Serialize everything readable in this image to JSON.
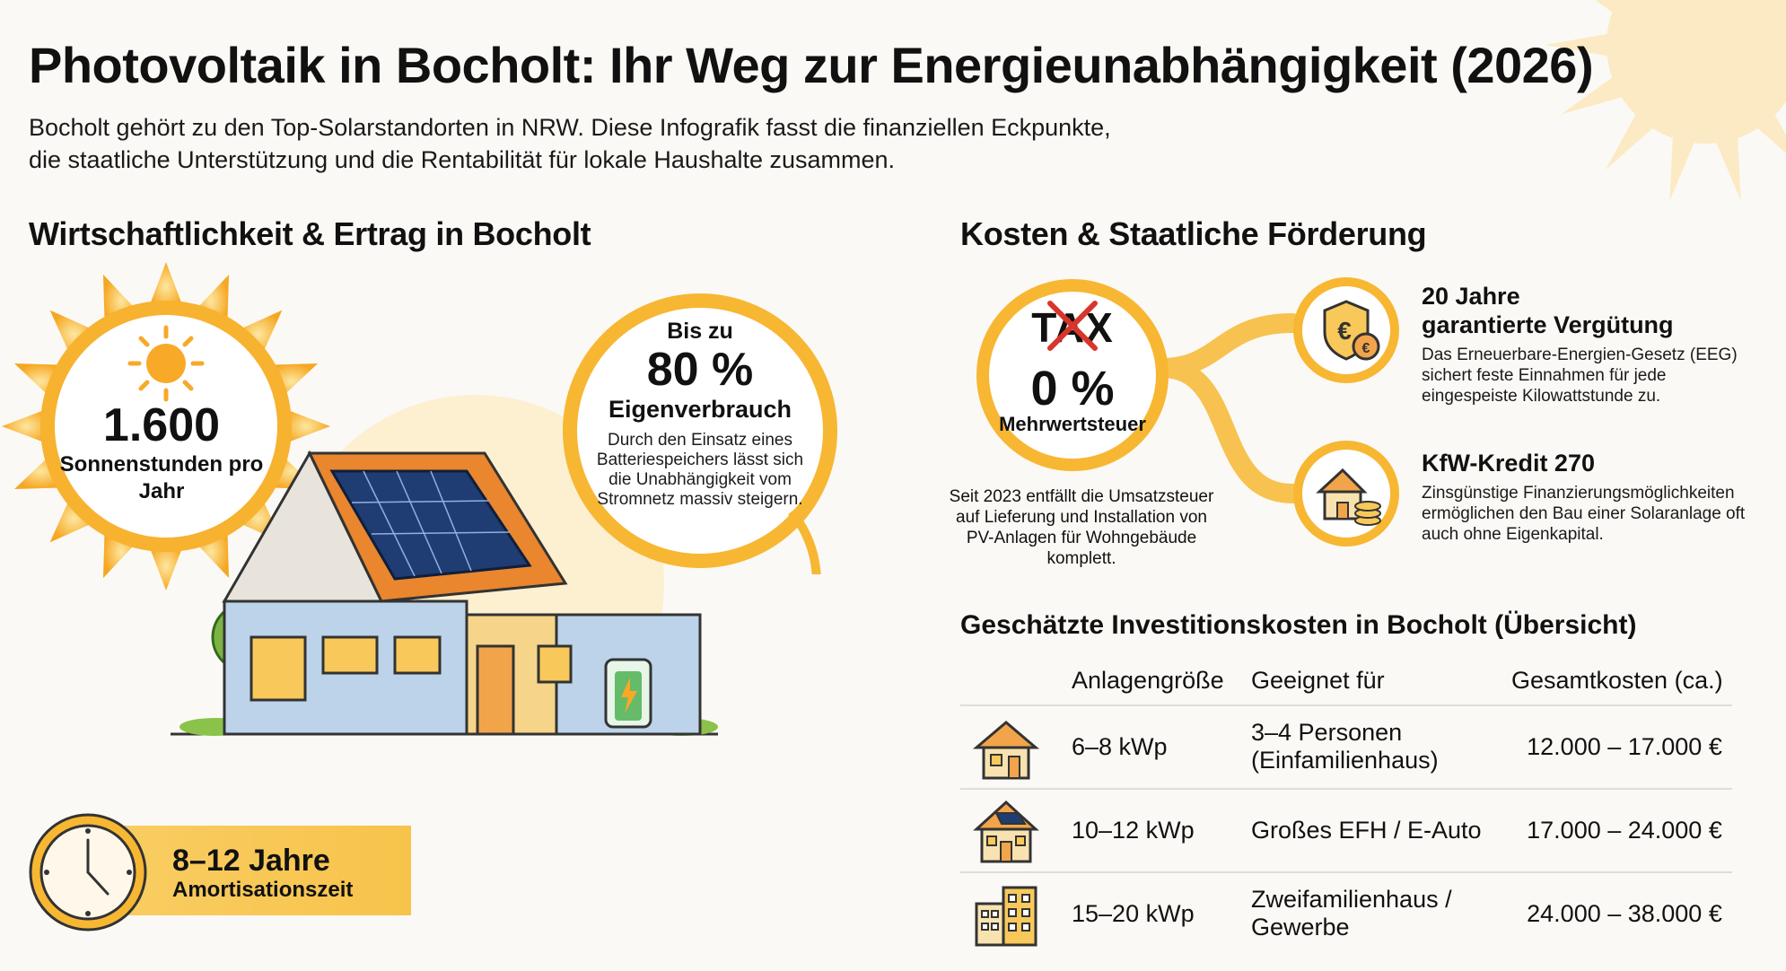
{
  "header": {
    "title": "Photovoltaik in Bocholt: Ihr Weg zur Energieunabhängigkeit (2026)",
    "intro_line1": "Bocholt gehört zu den Top-Solarstandorten in NRW. Diese Infografik fasst die finanziellen Eckpunkte,",
    "intro_line2": "die staatliche Unterstützung und die Rentabilität für lokale Haushalte zusammen."
  },
  "left": {
    "heading": "Wirtschaftlichkeit & Ertrag in Bocholt",
    "sun_value": "1.600",
    "sun_label": "Sonnenstunden pro Jahr",
    "self_consumption": {
      "prefix": "Bis zu",
      "value": "80 %",
      "label": "Eigenverbrauch",
      "description": "Durch den Einsatz eines Batteriespeichers lässt sich die Unabhängigkeit vom Stromnetz massiv steigern."
    },
    "amortisation": {
      "title": "8–12 Jahre",
      "label": "Amortisationszeit"
    }
  },
  "right": {
    "heading": "Kosten & Staatliche Förderung",
    "tax": {
      "word": "TAX",
      "value": "0 %",
      "label": "Mehrwertsteuer",
      "description": "Seit 2023 entfällt die Umsatzsteuer auf Lieferung und Installation von PV-Anlagen für Wohngebäude komplett."
    },
    "eeg": {
      "title_line1": "20 Jahre",
      "title_line2": "garantierte Vergütung",
      "description": "Das Erneuerbare-Energien-Gesetz (EEG) sichert feste Einnahmen für jede eingespeiste Kilowattstunde zu."
    },
    "kfw": {
      "title": "KfW-Kredit 270",
      "description": "Zinsgünstige Finanzierungsmöglichkeiten ermöglichen den Bau einer Solaranlage oft auch ohne Eigenkapital."
    },
    "table": {
      "heading": "Geschätzte Investitionskosten in Bocholt (Übersicht)",
      "columns": [
        "Anlagengröße",
        "Geeignet für",
        "Gesamtkosten (ca.)"
      ],
      "rows": [
        {
          "size": "6–8 kWp",
          "fit_line1": "3–4 Personen",
          "fit_line2": "(Einfamilienhaus)",
          "cost": "12.000 – 17.000 €",
          "icon": "small-house-icon"
        },
        {
          "size": "10–12 kWp",
          "fit_line1": "Großes EFH / E-Auto",
          "fit_line2": "",
          "cost": "17.000 – 24.000 €",
          "icon": "solar-house-icon"
        },
        {
          "size": "15–20 kWp",
          "fit_line1": "Zweifamilienhaus /",
          "fit_line2": "Gewerbe",
          "cost": "24.000 – 38.000 €",
          "icon": "building-icon"
        }
      ]
    }
  },
  "colors": {
    "sun_yellow": "#f7b733",
    "sun_orange": "#f29a1f",
    "accent_orange": "#f39a2a",
    "amort_box": "#f8c850",
    "tax_cross": "#d9352b"
  }
}
